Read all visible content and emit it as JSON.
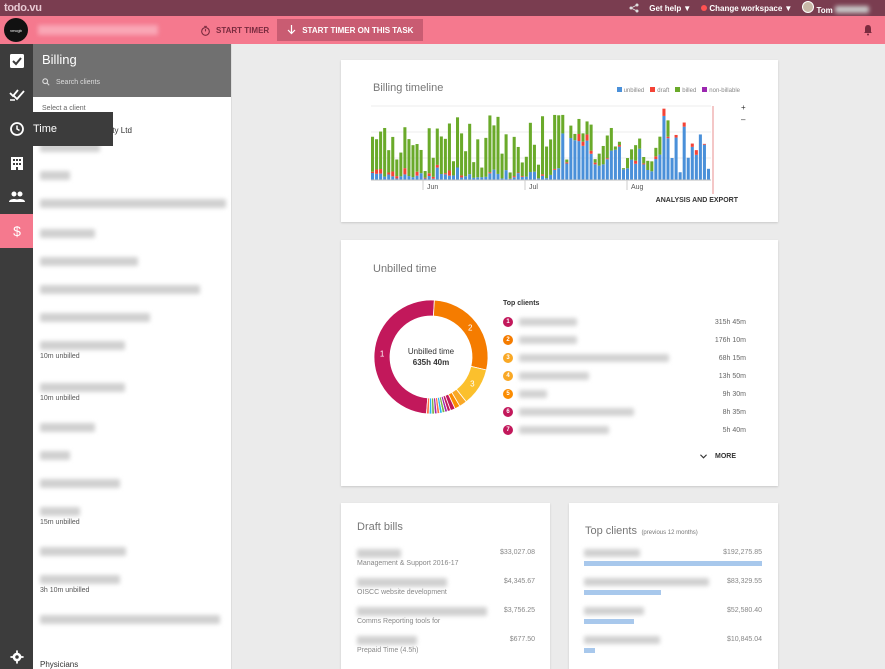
{
  "topbar": {
    "logo": "todo.vu",
    "help": "Get help",
    "workspace": "Change workspace",
    "user": "Tom"
  },
  "timer": {
    "start_timer": "START TIMER",
    "start_task": "START TIMER ON THIS TASK"
  },
  "rail": {
    "tooltip": "Time"
  },
  "panel": {
    "title": "Billing",
    "search_placeholder": "Search clients",
    "select_label": "Select a client",
    "first_client_suffix": "Pty Ltd",
    "clients": [
      {
        "unbilled": ""
      },
      {
        "unbilled": ""
      },
      {
        "unbilled": ""
      },
      {
        "unbilled": ""
      },
      {
        "unbilled": ""
      },
      {
        "unbilled": ""
      },
      {
        "unbilled": ""
      },
      {
        "unbilled": "10m unbilled"
      },
      {
        "unbilled": "10m unbilled"
      },
      {
        "unbilled": ""
      },
      {
        "unbilled": ""
      },
      {
        "unbilled": ""
      },
      {
        "unbilled": "15m unbilled"
      },
      {
        "unbilled": ""
      },
      {
        "unbilled": "3h 10m unbilled"
      },
      {
        "unbilled": ""
      }
    ],
    "last_client": "Physicians"
  },
  "timeline": {
    "title": "Billing timeline",
    "legend": [
      {
        "label": "unbilled",
        "color": "#4a90d9"
      },
      {
        "label": "draft",
        "color": "#f44336"
      },
      {
        "label": "billed",
        "color": "#6aaa2a"
      },
      {
        "label": "non-billable",
        "color": "#9c27b0"
      }
    ],
    "months": [
      "Jun",
      "Jul",
      "Aug"
    ],
    "zoom_in": "+",
    "zoom_out": "–",
    "action": "ANALYSIS AND EXPORT"
  },
  "unbilled": {
    "title": "Unbilled time",
    "center_label": "Unbilled time",
    "center_value": "635h 40m",
    "top_clients_label": "Top clients",
    "more": "MORE",
    "clients": [
      {
        "rank": "1",
        "time": "315h 45m",
        "color": "#c2185b"
      },
      {
        "rank": "2",
        "time": "176h 10m",
        "color": "#f57c00"
      },
      {
        "rank": "3",
        "time": "68h 15m",
        "color": "#f9a825"
      },
      {
        "rank": "4",
        "time": "13h 50m",
        "color": "#f9a825"
      },
      {
        "rank": "5",
        "time": "9h 30m",
        "color": "#fb8c00"
      },
      {
        "rank": "6",
        "time": "8h 35m",
        "color": "#c2185b"
      },
      {
        "rank": "7",
        "time": "5h 40m",
        "color": "#c2185b"
      }
    ]
  },
  "draft_bills": {
    "title": "Draft bills",
    "bills": [
      {
        "desc": "Management & Support 2016-17",
        "amount": "$33,027.08"
      },
      {
        "desc": "OISCC website development",
        "amount": "$4,345.67"
      },
      {
        "desc": "Comms Reporting tools for",
        "amount": "$3,756.25"
      },
      {
        "desc": "Prepaid Time (4.5h)",
        "amount": "$677.50"
      }
    ]
  },
  "top_clients": {
    "title": "Top clients",
    "subtitle": "(previous 12 months)",
    "clients": [
      {
        "amount": "$192,275.85",
        "share": 1.0
      },
      {
        "amount": "$83,329.55",
        "share": 0.43
      },
      {
        "amount": "$52,580.40",
        "share": 0.28
      },
      {
        "amount": "$10,845.04",
        "share": 0.06
      }
    ]
  }
}
